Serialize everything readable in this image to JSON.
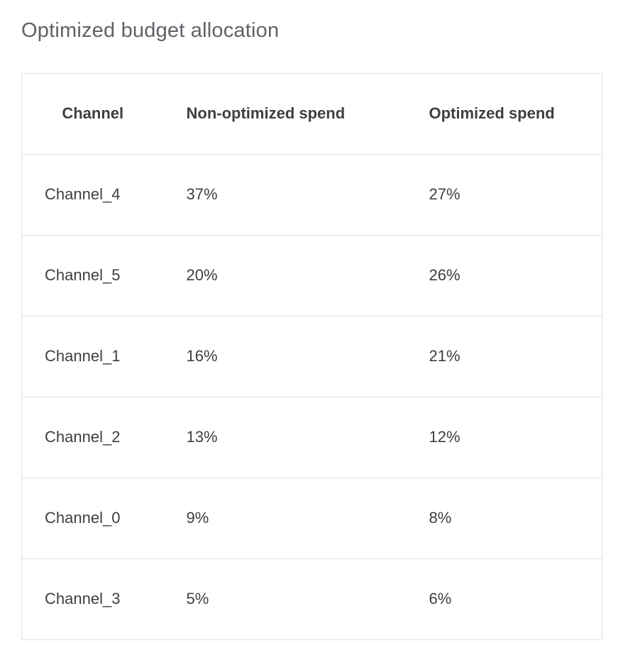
{
  "page": {
    "title": "Optimized budget allocation"
  },
  "colors": {
    "background": "#ffffff",
    "title_text": "#5f6368",
    "header_text": "#3c4043",
    "body_text": "#3c4043",
    "table_border": "#e0e0e0"
  },
  "chart_data": {
    "type": "table",
    "title": "Optimized budget allocation",
    "columns": [
      "Channel",
      "Non-optimized spend",
      "Optimized spend"
    ],
    "rows": [
      [
        "Channel_4",
        "37%",
        "27%"
      ],
      [
        "Channel_5",
        "20%",
        "26%"
      ],
      [
        "Channel_1",
        "16%",
        "21%"
      ],
      [
        "Channel_2",
        "13%",
        "12%"
      ],
      [
        "Channel_0",
        "9%",
        "8%"
      ],
      [
        "Channel_3",
        "5%",
        "6%"
      ]
    ]
  }
}
